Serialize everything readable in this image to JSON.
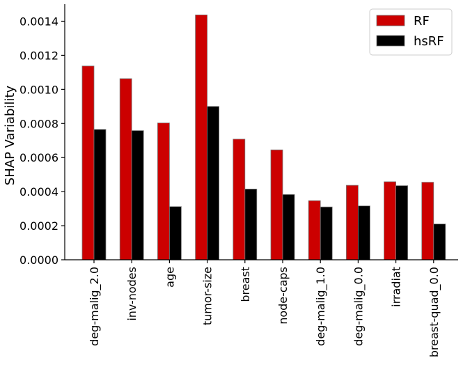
{
  "chart_data": {
    "type": "bar",
    "title": "",
    "xlabel": "",
    "ylabel": "SHAP Variability",
    "ylim": [
      0,
      0.0015
    ],
    "yticks": [
      "0.0000",
      "0.0002",
      "0.0004",
      "0.0006",
      "0.0008",
      "0.0010",
      "0.0012",
      "0.0014"
    ],
    "ytick_values": [
      0,
      0.0002,
      0.0004,
      0.0006,
      0.0008,
      0.001,
      0.0012,
      0.0014
    ],
    "grid": false,
    "legend_position": "top-right",
    "categories": [
      "deg-malig_2.0",
      "inv-nodes",
      "age",
      "tumor-size",
      "breast",
      "node-caps",
      "deg-malig_1.0",
      "deg-malig_0.0",
      "irradiat",
      "breast-quad_0.0"
    ],
    "series": [
      {
        "name": "RF",
        "color": "#cc0000",
        "values": [
          0.001137,
          0.001063,
          0.000803,
          0.001437,
          0.000708,
          0.000645,
          0.000347,
          0.000437,
          0.000458,
          0.000455
        ]
      },
      {
        "name": "hsRF",
        "color": "#000000",
        "values": [
          0.000765,
          0.000758,
          0.000312,
          0.0009,
          0.000415,
          0.000383,
          0.00031,
          0.000316,
          0.000435,
          0.00021
        ]
      }
    ]
  }
}
